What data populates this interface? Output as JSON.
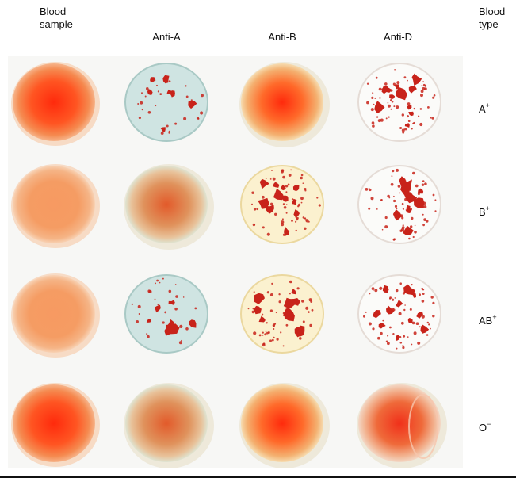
{
  "headers": {
    "blood_sample_line1": "Blood",
    "blood_sample_line2": "sample",
    "anti_a": "Anti-A",
    "anti_b": "Anti-B",
    "anti_d": "Anti-D",
    "blood_type_line1": "Blood",
    "blood_type_line2": "type"
  },
  "rows": [
    {
      "base": "A",
      "sign": "+"
    },
    {
      "base": "B",
      "sign": "+"
    },
    {
      "base": "AB",
      "sign": "+"
    },
    {
      "base": "O",
      "sign": "−"
    }
  ],
  "agglutination": {
    "A+": {
      "anti_a": true,
      "anti_b": false,
      "anti_d": true
    },
    "B+": {
      "anti_a": false,
      "anti_b": true,
      "anti_d": true
    },
    "AB+": {
      "anti_a": true,
      "anti_b": true,
      "anti_d": true
    },
    "O−": {
      "anti_a": false,
      "anti_b": false,
      "anti_d": false
    }
  },
  "colors": {
    "blood": "#ff3a12",
    "blood_light": "#f7a06a",
    "clump": "#c8231a",
    "anti_a_serum": "#cfe4e2",
    "anti_b_serum": "#fbf1cf",
    "anti_d_serum": "#fbfbf9",
    "plate": "#f7f7f5"
  },
  "icons": {
    "drop": "blood-drop-icon",
    "clump": "agglutination-clump-icon"
  }
}
